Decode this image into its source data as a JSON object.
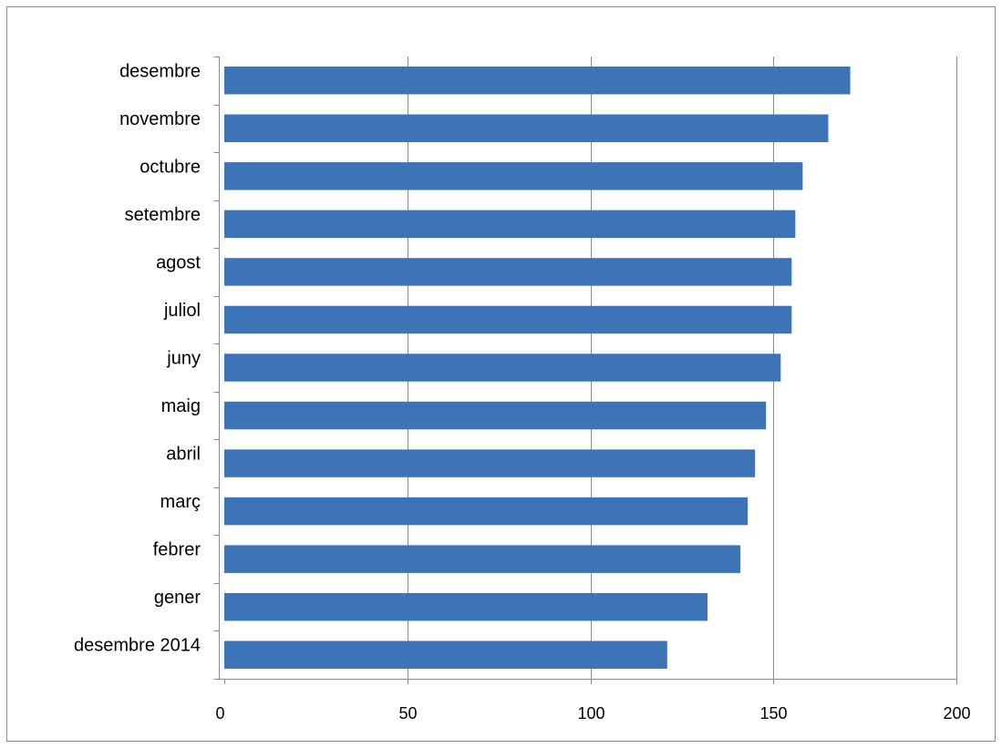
{
  "chart_data": {
    "type": "bar",
    "orientation": "horizontal",
    "title": "",
    "xlabel": "",
    "ylabel": "",
    "categories": [
      "desembre 2014",
      "gener",
      "febrer",
      "març",
      "abril",
      "maig",
      "juny",
      "juliol",
      "agost",
      "setembre",
      "octubre",
      "novembre",
      "desembre"
    ],
    "values": [
      121,
      132,
      141,
      143,
      145,
      148,
      152,
      155,
      155,
      156,
      158,
      165,
      171
    ],
    "xlim": [
      0,
      200
    ],
    "xticks": [
      "0",
      "50",
      "100",
      "150",
      "200"
    ],
    "grid": "vertical",
    "legend": "none",
    "bar_color": "#3d74b7",
    "grid_color": "#8c8c8c"
  }
}
